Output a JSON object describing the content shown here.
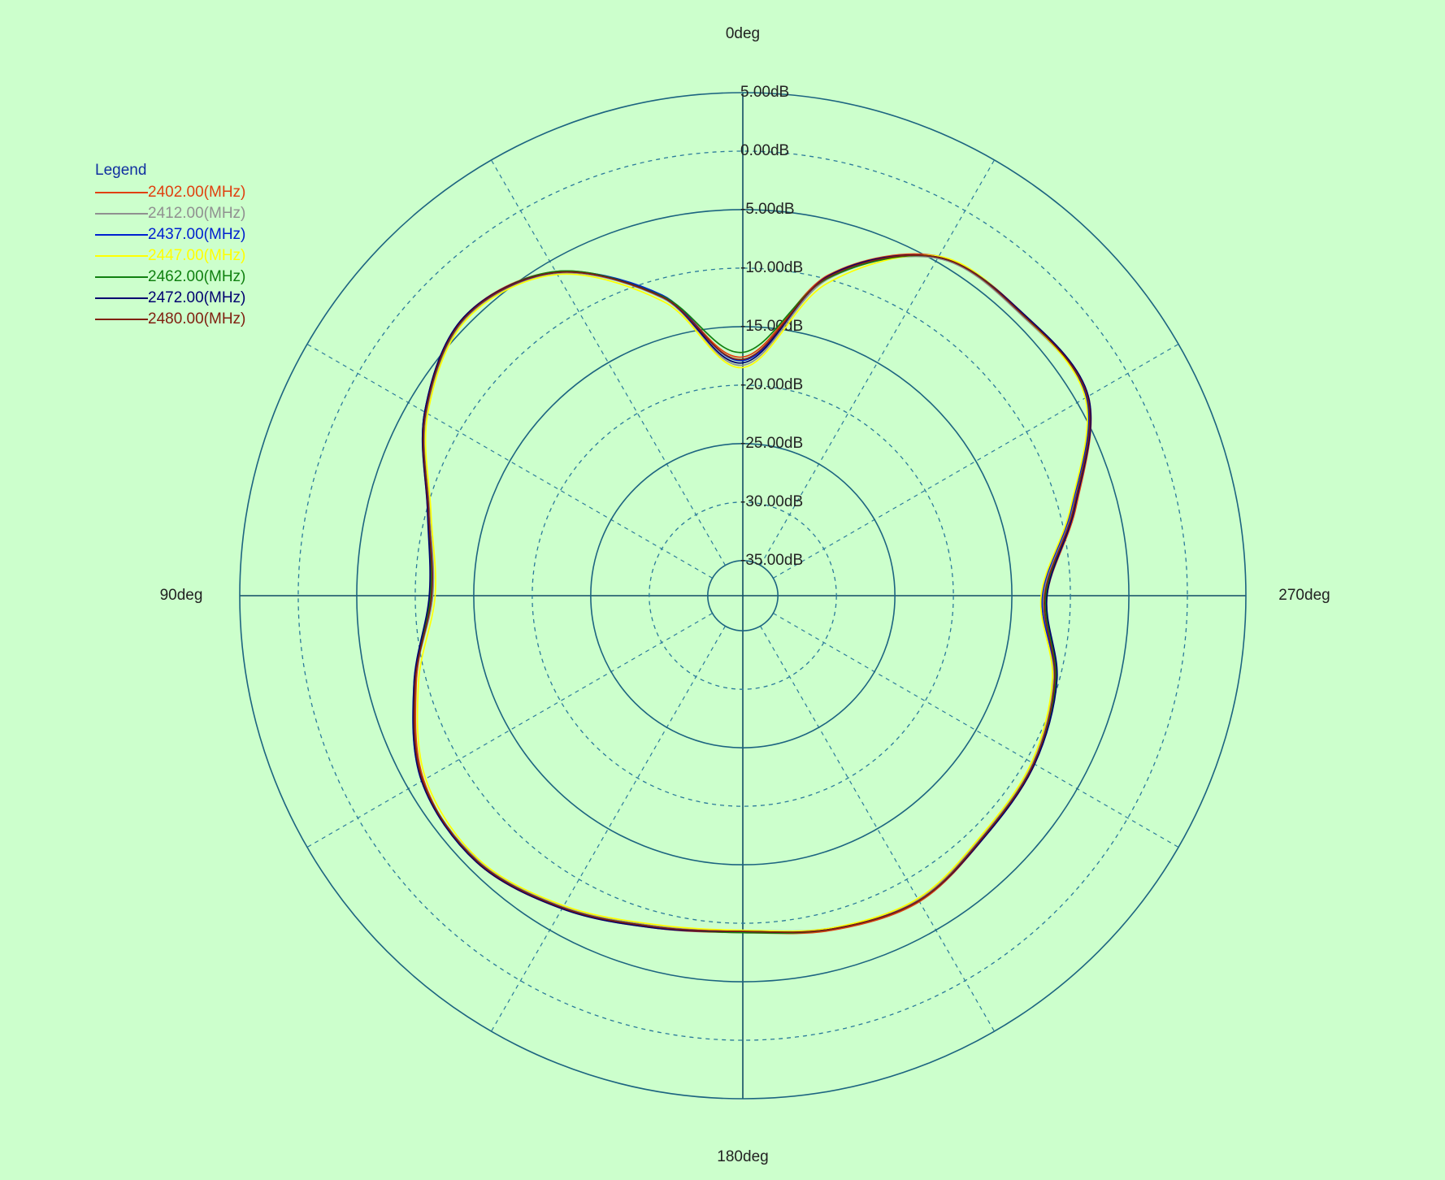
{
  "chart_data": {
    "type": "polar",
    "direction": "counterclockwise",
    "zero_location": "top",
    "rlim": [
      -38,
      5
    ],
    "rticks": [
      {
        "value": 5,
        "label": "5.00dB"
      },
      {
        "value": 0,
        "label": "0.00dB"
      },
      {
        "value": -5,
        "label": "-5.00dB"
      },
      {
        "value": -10,
        "label": "-10.00dB"
      },
      {
        "value": -15,
        "label": "-15.00dB"
      },
      {
        "value": -20,
        "label": "-20.00dB"
      },
      {
        "value": -25,
        "label": "-25.00dB"
      },
      {
        "value": -30,
        "label": "-30.00dB"
      },
      {
        "value": -35,
        "label": "-35.00dB"
      }
    ],
    "thetaticks": [
      {
        "value": 0,
        "label": "0deg"
      },
      {
        "value": 90,
        "label": "90deg"
      },
      {
        "value": 180,
        "label": "180deg"
      },
      {
        "value": 270,
        "label": "270deg"
      }
    ],
    "thetagrid": [
      0,
      30,
      60,
      90,
      120,
      150,
      180,
      210,
      240,
      270,
      300,
      330
    ],
    "legend_title": "Legend",
    "legend_position": "upper left",
    "theta": [
      0,
      15,
      30,
      45,
      60,
      75,
      90,
      105,
      120,
      135,
      150,
      165,
      180,
      195,
      210,
      225,
      240,
      255,
      270,
      285,
      300,
      315,
      330,
      345
    ],
    "series": [
      {
        "name": "2402.00(MHz)",
        "color": "#e0400f",
        "values": [
          -17.6,
          -11.5,
          -6.0,
          -4.3,
          -6.6,
          -10.1,
          -11.3,
          -9.1,
          -6.5,
          -5.8,
          -7.1,
          -8.6,
          -9.2,
          -8.4,
          -7.8,
          -8.8,
          -9.2,
          -10.3,
          -12.0,
          -8.5,
          -3.9,
          -4.0,
          -4.5,
          -9.6
        ]
      },
      {
        "name": "2412.00(MHz)",
        "color": "#909090",
        "values": [
          -18.3,
          -11.7,
          -6.2,
          -4.5,
          -6.8,
          -10.3,
          -11.5,
          -9.0,
          -6.4,
          -6.0,
          -7.3,
          -8.8,
          -9.4,
          -8.6,
          -8.0,
          -9.0,
          -9.4,
          -10.5,
          -12.3,
          -8.8,
          -4.1,
          -4.2,
          -4.7,
          -10.0
        ]
      },
      {
        "name": "2437.00(MHz)",
        "color": "#0020d0",
        "values": [
          -17.9,
          -11.4,
          -6.1,
          -4.4,
          -6.6,
          -10.2,
          -11.4,
          -8.9,
          -6.3,
          -5.9,
          -7.2,
          -8.7,
          -9.3,
          -8.5,
          -7.9,
          -8.9,
          -9.3,
          -10.4,
          -12.4,
          -8.9,
          -4.1,
          -4.1,
          -4.6,
          -9.8
        ]
      },
      {
        "name": "2447.00(MHz)",
        "color": "#ffff00",
        "values": [
          -18.5,
          -12.0,
          -6.3,
          -4.6,
          -6.9,
          -10.4,
          -11.7,
          -9.3,
          -6.7,
          -6.1,
          -7.4,
          -8.9,
          -9.4,
          -8.6,
          -8.1,
          -9.1,
          -9.5,
          -10.6,
          -12.5,
          -9.0,
          -4.2,
          -4.1,
          -4.5,
          -10.4
        ]
      },
      {
        "name": "2462.00(MHz)",
        "color": "#108010",
        "values": [
          -17.2,
          -11.5,
          -6.0,
          -4.4,
          -6.7,
          -10.2,
          -11.3,
          -9.0,
          -6.4,
          -5.9,
          -7.2,
          -8.7,
          -9.2,
          -8.5,
          -7.9,
          -8.9,
          -9.3,
          -10.3,
          -12.1,
          -8.7,
          -4.0,
          -4.1,
          -4.6,
          -9.9
        ]
      },
      {
        "name": "2472.00(MHz)",
        "color": "#000070",
        "values": [
          -18.1,
          -11.6,
          -6.1,
          -4.3,
          -6.6,
          -10.1,
          -11.2,
          -8.9,
          -6.3,
          -5.8,
          -7.1,
          -8.6,
          -9.3,
          -8.5,
          -7.9,
          -8.8,
          -9.2,
          -10.2,
          -12.0,
          -8.6,
          -3.9,
          -4.0,
          -4.6,
          -9.7
        ]
      },
      {
        "name": "2480.00(MHz)",
        "color": "#802010",
        "values": [
          -17.8,
          -11.6,
          -6.1,
          -4.4,
          -6.7,
          -10.2,
          -11.4,
          -9.0,
          -6.4,
          -5.9,
          -7.2,
          -8.7,
          -9.3,
          -8.5,
          -7.9,
          -8.9,
          -9.3,
          -10.4,
          -12.2,
          -8.7,
          -4.0,
          -4.1,
          -4.6,
          -9.8
        ]
      }
    ]
  }
}
